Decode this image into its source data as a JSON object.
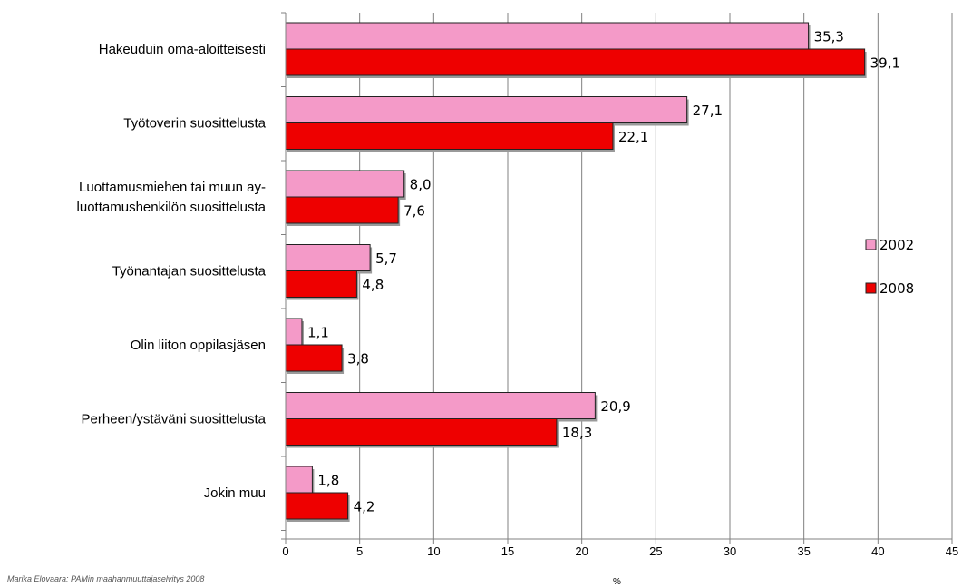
{
  "chart_data": {
    "type": "bar",
    "orientation": "horizontal",
    "categories": [
      [
        "Hakeuduin oma-aloitteisesti"
      ],
      [
        "Työtoverin suosittelusta"
      ],
      [
        "Luottamusmiehen tai muun ay-",
        "luottamushenkilön suosittelusta"
      ],
      [
        "Työnantajan suosittelusta"
      ],
      [
        "Olin liiton oppilasjäsen"
      ],
      [
        "Perheen/ystäväni suosittelusta"
      ],
      [
        "Jokin muu"
      ]
    ],
    "series": [
      {
        "name": "2002",
        "color": "#f49ac8",
        "values": [
          35.3,
          27.1,
          8.0,
          5.7,
          1.1,
          20.9,
          1.8
        ],
        "labels": [
          "35,3",
          "27,1",
          "8,0",
          "5,7",
          "1,1",
          "20,9",
          "1,8"
        ]
      },
      {
        "name": "2008",
        "color": "#ee0000",
        "values": [
          39.1,
          22.1,
          7.6,
          4.8,
          3.8,
          18.3,
          4.2
        ],
        "labels": [
          "39,1",
          "22,1",
          "7,6",
          "4,8",
          "3,8",
          "18,3",
          "4,2"
        ]
      }
    ],
    "xlim": [
      0,
      45
    ],
    "xticks": [
      0,
      5,
      10,
      15,
      20,
      25,
      30,
      35,
      40,
      45
    ],
    "xlabel": "%",
    "grid": true,
    "legend": "right"
  },
  "source": "Marika Elovaara: PAMin maahanmuuttajaselvitys 2008"
}
